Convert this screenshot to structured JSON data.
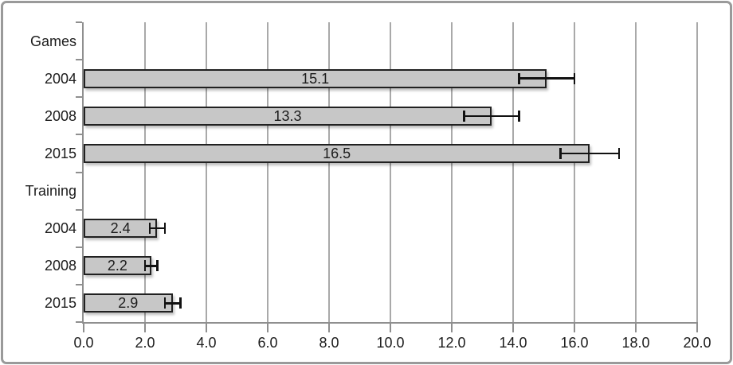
{
  "chart_data": {
    "type": "bar",
    "orientation": "horizontal",
    "title": "",
    "xlabel": "",
    "ylabel": "",
    "categories": [
      "Games",
      "2004",
      "2008",
      "2015",
      "Training",
      "2004",
      "2008",
      "2015"
    ],
    "values": [
      null,
      15.1,
      13.3,
      16.5,
      null,
      2.4,
      2.2,
      2.9
    ],
    "value_labels": [
      "",
      "15.1",
      "13.3",
      "16.5",
      "",
      "2.4",
      "2.2",
      "2.9"
    ],
    "errors": [
      null,
      0.9,
      0.9,
      0.95,
      null,
      0.25,
      0.2,
      0.25
    ],
    "xlim": [
      0,
      20
    ],
    "xtick_step": 2,
    "xtick_labels": [
      "0.0",
      "2.0",
      "4.0",
      "6.0",
      "8.0",
      "10.0",
      "12.0",
      "14.0",
      "16.0",
      "18.0",
      "20.0"
    ],
    "grid": true,
    "legend": false,
    "colors": {
      "bar_fill": "#c7c7c7",
      "bar_border": "#212121",
      "gridline": "#a9a9a9",
      "axis": "#8f8f8f",
      "text": "#1c1c1c",
      "error_bar": "#111111",
      "frame": "#9a9a9a"
    }
  }
}
